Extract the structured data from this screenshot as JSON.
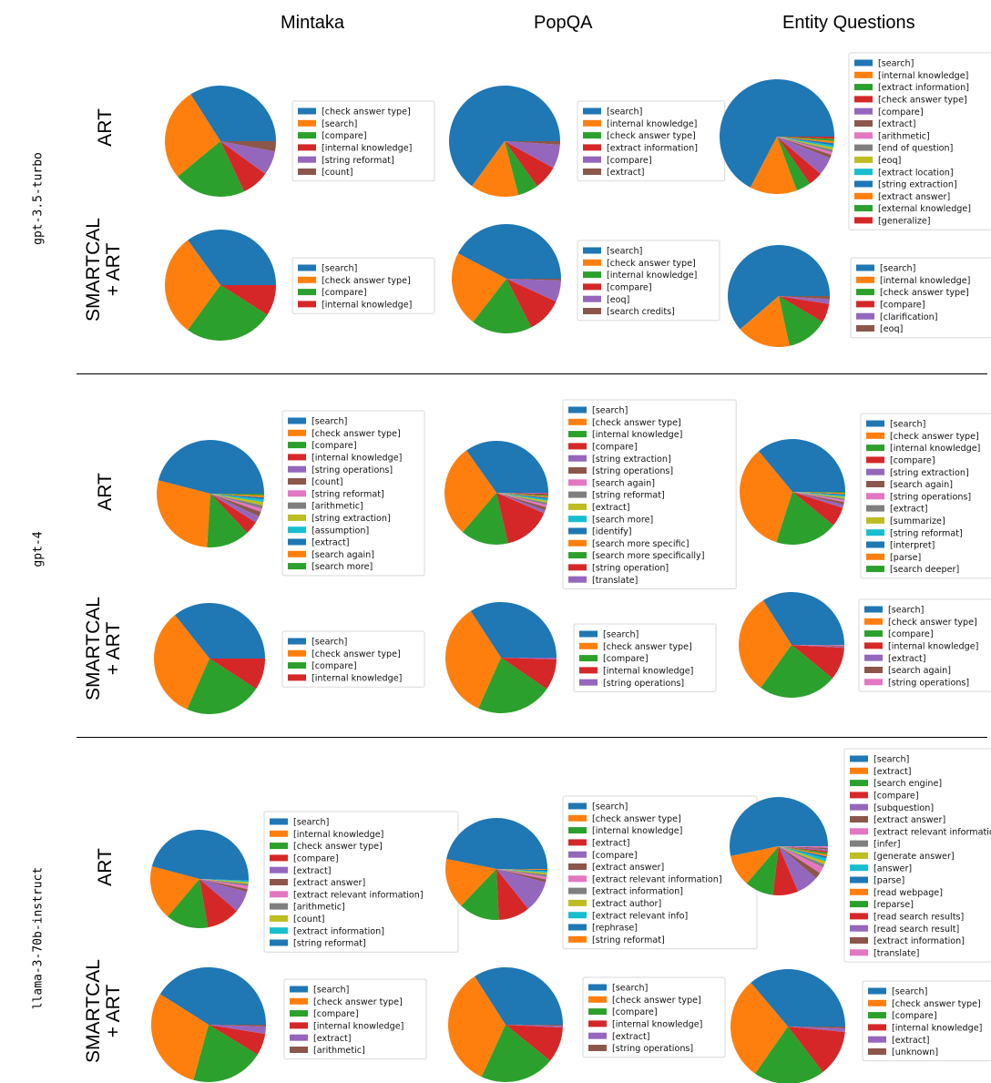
{
  "columns": [
    "Mintaka",
    "PopQA",
    "Entity Questions"
  ],
  "models": [
    "gpt-3.5-turbo",
    "gpt-4",
    "llama-3-70b-instruct"
  ],
  "row_labels": {
    "art": [
      "ART"
    ],
    "smartcal": [
      "SMARTCAL",
      "+ ART"
    ]
  },
  "colors": [
    "#1f77b4",
    "#ff7f0e",
    "#2ca02c",
    "#d62728",
    "#9467bd",
    "#8c564b",
    "#e377c2",
    "#7f7f7f",
    "#bcbd22",
    "#17becf"
  ],
  "chart_data": [
    {
      "type": "pie",
      "model": "gpt-3.5-turbo",
      "method": "ART",
      "dataset": "Mintaka",
      "categories": [
        "[check answer type]",
        "[search]",
        "[compare]",
        "[internal knowledge]",
        "[string reformat]",
        "[count]"
      ],
      "values": [
        34,
        27,
        21,
        8,
        7,
        3
      ]
    },
    {
      "type": "pie",
      "model": "gpt-3.5-turbo",
      "method": "ART",
      "dataset": "PopQA",
      "categories": [
        "[search]",
        "[internal knowledge]",
        "[check answer type]",
        "[extract information]",
        "[compare]",
        "[extract]"
      ],
      "values": [
        65,
        14,
        6,
        7,
        7,
        1
      ]
    },
    {
      "type": "pie",
      "model": "gpt-3.5-turbo",
      "method": "ART",
      "dataset": "Entity Questions",
      "categories": [
        "[search]",
        "[internal knowledge]",
        "[extract information]",
        "[check answer type]",
        "[compare]",
        "[extract]",
        "[arithmetic]",
        "[end of question]",
        "[eoq]",
        "[extract location]",
        "[string extraction]",
        "[extract answer]",
        "[external knowledge]",
        "[generalize]"
      ],
      "values": [
        66,
        13,
        4,
        4,
        5,
        1,
        0.7,
        0.7,
        0.6,
        0.6,
        0.6,
        0.6,
        0.6,
        0.6
      ]
    },
    {
      "type": "pie",
      "model": "gpt-3.5-turbo",
      "method": "SMARTCAL + ART",
      "dataset": "Mintaka",
      "categories": [
        "[search]",
        "[check answer type]",
        "[compare]",
        "[internal knowledge]"
      ],
      "values": [
        35,
        30,
        26,
        9
      ]
    },
    {
      "type": "pie",
      "model": "gpt-3.5-turbo",
      "method": "SMARTCAL + ART",
      "dataset": "PopQA",
      "categories": [
        "[search]",
        "[check answer type]",
        "[internal knowledge]",
        "[compare]",
        "[eoq]",
        "[search credits]"
      ],
      "values": [
        40,
        21,
        17,
        10,
        6,
        0.5
      ]
    },
    {
      "type": "pie",
      "model": "gpt-3.5-turbo",
      "method": "SMARTCAL + ART",
      "dataset": "Entity Questions",
      "categories": [
        "[search]",
        "[internal knowledge]",
        "[check answer type]",
        "[compare]",
        "[clarification]",
        "[eoq]"
      ],
      "values": [
        61,
        17,
        13,
        6,
        1.5,
        1
      ]
    },
    {
      "type": "pie",
      "model": "gpt-4",
      "method": "ART",
      "dataset": "Mintaka",
      "categories": [
        "[search]",
        "[check answer type]",
        "[compare]",
        "[internal knowledge]",
        "[string operations]",
        "[count]",
        "[string reformat]",
        "[arithmetic]",
        "[string extraction]",
        "[assumption]",
        "[extract]",
        "[search again]",
        "[search more]"
      ],
      "values": [
        46,
        28,
        13,
        4,
        2,
        1.5,
        1,
        1,
        1,
        0.8,
        0.6,
        0.6,
        0.5
      ]
    },
    {
      "type": "pie",
      "model": "gpt-4",
      "method": "ART",
      "dataset": "PopQA",
      "categories": [
        "[search]",
        "[check answer type]",
        "[internal knowledge]",
        "[compare]",
        "[string extraction]",
        "[string operations]",
        "[search again]",
        "[string reformat]",
        "[extract]",
        "[search more]",
        "[identify]",
        "[search more specific]",
        "[search more specifically]",
        "[string operation]",
        "[translate]"
      ],
      "values": [
        35,
        29,
        15,
        15,
        1,
        1,
        0.7,
        0.7,
        0.6,
        0.5,
        0.5,
        0.4,
        0.4,
        0.4,
        0.3
      ]
    },
    {
      "type": "pie",
      "model": "gpt-4",
      "method": "ART",
      "dataset": "Entity Questions",
      "categories": [
        "[search]",
        "[check answer type]",
        "[internal knowledge]",
        "[compare]",
        "[string extraction]",
        "[search again]",
        "[string operations]",
        "[extract]",
        "[summarize]",
        "[string reformat]",
        "[interpret]",
        "[parse]",
        "[search deeper]"
      ],
      "values": [
        36,
        34,
        19,
        6,
        1,
        0.8,
        0.6,
        0.5,
        0.5,
        0.4,
        0.4,
        0.4,
        0.3
      ]
    },
    {
      "type": "pie",
      "model": "gpt-4",
      "method": "SMARTCAL + ART",
      "dataset": "Mintaka",
      "categories": [
        "[search]",
        "[check answer type]",
        "[compare]",
        "[internal knowledge]"
      ],
      "values": [
        35,
        32,
        22,
        9
      ]
    },
    {
      "type": "pie",
      "model": "gpt-4",
      "method": "SMARTCAL + ART",
      "dataset": "PopQA",
      "categories": [
        "[search]",
        "[check answer type]",
        "[compare]",
        "[internal knowledge]",
        "[string operations]"
      ],
      "values": [
        34,
        34,
        22,
        9,
        0.5
      ]
    },
    {
      "type": "pie",
      "model": "gpt-4",
      "method": "SMARTCAL + ART",
      "dataset": "Entity Questions",
      "categories": [
        "[search]",
        "[check answer type]",
        "[compare]",
        "[internal knowledge]",
        "[extract]",
        "[search again]",
        "[string operations]"
      ],
      "values": [
        34,
        31,
        24,
        10,
        0.4,
        0.3,
        0.2
      ]
    },
    {
      "type": "pie",
      "model": "llama-3-70b-instruct",
      "method": "ART",
      "dataset": "Mintaka",
      "categories": [
        "[search]",
        "[internal knowledge]",
        "[check answer type]",
        "[compare]",
        "[extract]",
        "[extract answer]",
        "[extract relevant information]",
        "[arithmetic]",
        "[count]",
        "[extract information]",
        "[string reformat]"
      ],
      "values": [
        46,
        18,
        14,
        11,
        7,
        1,
        1,
        0.7,
        0.6,
        0.5,
        0.5
      ]
    },
    {
      "type": "pie",
      "model": "llama-3-70b-instruct",
      "method": "ART",
      "dataset": "PopQA",
      "categories": [
        "[search]",
        "[check answer type]",
        "[internal knowledge]",
        "[extract]",
        "[compare]",
        "[extract answer]",
        "[extract relevant information]",
        "[extract information]",
        "[extract author]",
        "[extract relevant info]",
        "[rephrase]",
        "[string reformat]"
      ],
      "values": [
        47,
        16,
        13,
        10,
        10,
        1,
        0.8,
        0.7,
        0.6,
        0.5,
        0.4,
        0.3
      ]
    },
    {
      "type": "pie",
      "model": "llama-3-70b-instruct",
      "method": "ART",
      "dataset": "Entity Questions",
      "categories": [
        "[search]",
        "[extract]",
        "[search engine]",
        "[compare]",
        "[subquestion]",
        "[extract answer]",
        "[extract relevant information]",
        "[infer]",
        "[generate answer]",
        "[answer]",
        "[parse]",
        "[read webpage]",
        "[reparse]",
        "[read search results]",
        "[read search result]",
        "[extract information]",
        "[translate]"
      ],
      "values": [
        51,
        10,
        9,
        8,
        7,
        2,
        2,
        1,
        1,
        1,
        0.6,
        0.6,
        0.6,
        0.5,
        0.5,
        0.5,
        0.5
      ]
    },
    {
      "type": "pie",
      "model": "llama-3-70b-instruct",
      "method": "SMARTCAL + ART",
      "dataset": "Mintaka",
      "categories": [
        "[search]",
        "[check answer type]",
        "[compare]",
        "[internal knowledge]",
        "[extract]",
        "[arithmetic]"
      ],
      "values": [
        40,
        29,
        20,
        6,
        2,
        0.5
      ]
    },
    {
      "type": "pie",
      "model": "llama-3-70b-instruct",
      "method": "SMARTCAL + ART",
      "dataset": "PopQA",
      "categories": [
        "[search]",
        "[check answer type]",
        "[compare]",
        "[internal knowledge]",
        "[extract]",
        "[string operations]"
      ],
      "values": [
        34,
        34,
        21,
        10,
        0.5,
        0.3
      ]
    },
    {
      "type": "pie",
      "model": "llama-3-70b-instruct",
      "method": "SMARTCAL + ART",
      "dataset": "Entity Questions",
      "categories": [
        "[search]",
        "[check answer type]",
        "[compare]",
        "[internal knowledge]",
        "[extract]",
        "[unknown]"
      ],
      "values": [
        36,
        29,
        20,
        13,
        1,
        0.5
      ]
    }
  ]
}
